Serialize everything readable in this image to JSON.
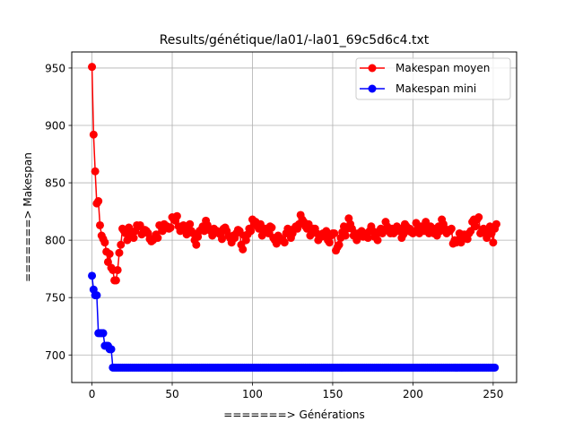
{
  "chart_data": {
    "type": "line",
    "title": "Results/génétique/la01/-la01_69c5d6c4.txt",
    "xlabel": "=======> Générations",
    "ylabel": "=======> Makespan",
    "xlim": [
      -12.6,
      264.6
    ],
    "ylim": [
      676,
      964
    ],
    "x_ticks": [
      0,
      50,
      100,
      150,
      200,
      250
    ],
    "x_tick_labels": [
      "0",
      "50",
      "100",
      "150",
      "200",
      "250"
    ],
    "y_ticks": [
      700,
      750,
      800,
      850,
      900,
      950
    ],
    "y_tick_labels": [
      "700",
      "750",
      "800",
      "850",
      "900",
      "950"
    ],
    "grid": true,
    "legend_position": "upper right",
    "series": [
      {
        "name": "Makespan moyen",
        "color": "#ff0000",
        "marker": "circle",
        "x_start": 0,
        "x_step": 1,
        "values": [
          951,
          892,
          860,
          832,
          834,
          813,
          804,
          801,
          798,
          790,
          781,
          788,
          776,
          774,
          765,
          765,
          774,
          789,
          796,
          810,
          808,
          806,
          800,
          811,
          806,
          804,
          802,
          808,
          813,
          812,
          813,
          805,
          807,
          809,
          808,
          806,
          801,
          799,
          800,
          802,
          805,
          802,
          813,
          812,
          808,
          814,
          811,
          812,
          810,
          811,
          820,
          818,
          817,
          821,
          812,
          808,
          809,
          813,
          810,
          805,
          811,
          814,
          808,
          806,
          800,
          796,
          803,
          808,
          809,
          812,
          808,
          817,
          813,
          809,
          808,
          804,
          810,
          807,
          808,
          806,
          805,
          801,
          810,
          811,
          808,
          804,
          802,
          798,
          804,
          802,
          806,
          809,
          808,
          796,
          792,
          804,
          800,
          805,
          810,
          808,
          818,
          814,
          816,
          812,
          810,
          814,
          804,
          808,
          810,
          810,
          806,
          812,
          811,
          802,
          800,
          797,
          804,
          802,
          800,
          800,
          798,
          806,
          810,
          808,
          802,
          806,
          810,
          812,
          810,
          814,
          822,
          818,
          816,
          812,
          810,
          814,
          804,
          808,
          810,
          810,
          806,
          800,
          804,
          803,
          806,
          805,
          808,
          800,
          798,
          804,
          806,
          806,
          791,
          794,
          796,
          802,
          807,
          812,
          804,
          810,
          819,
          814,
          810,
          804,
          806,
          800,
          806,
          805,
          808,
          803,
          804,
          806,
          802,
          808,
          812,
          808,
          803,
          804,
          800,
          808,
          810,
          806,
          808,
          816,
          812,
          808,
          806,
          810,
          806,
          808,
          812,
          808,
          810,
          802,
          805,
          814,
          812,
          808,
          810,
          807,
          806,
          808,
          815,
          810,
          806,
          812,
          810,
          808,
          816,
          810,
          806,
          812,
          810,
          806,
          810,
          804,
          812,
          808,
          818,
          814,
          810,
          806,
          808,
          808,
          810,
          797,
          800,
          798,
          800,
          806,
          798,
          802,
          805,
          803,
          801,
          806,
          808,
          816,
          818,
          812,
          818,
          820,
          806,
          808,
          810,
          806,
          802,
          808,
          812,
          806,
          798,
          810,
          814
        ]
      },
      {
        "name": "Makespan mini",
        "color": "#0000ff",
        "marker": "circle",
        "x_start": 0,
        "x_step": 1,
        "values": [
          769,
          757,
          752,
          752,
          719,
          719,
          719,
          719,
          708,
          708,
          708,
          705,
          705,
          689,
          689,
          689,
          689,
          689,
          689,
          689,
          689,
          689,
          689,
          689,
          689,
          689,
          689,
          689,
          689,
          689,
          689,
          689,
          689,
          689,
          689,
          689,
          689,
          689,
          689,
          689,
          689,
          689,
          689,
          689,
          689,
          689,
          689,
          689,
          689,
          689,
          689,
          689,
          689,
          689,
          689,
          689,
          689,
          689,
          689,
          689,
          689,
          689,
          689,
          689,
          689,
          689,
          689,
          689,
          689,
          689,
          689,
          689,
          689,
          689,
          689,
          689,
          689,
          689,
          689,
          689,
          689,
          689,
          689,
          689,
          689,
          689,
          689,
          689,
          689,
          689,
          689,
          689,
          689,
          689,
          689,
          689,
          689,
          689,
          689,
          689,
          689,
          689,
          689,
          689,
          689,
          689,
          689,
          689,
          689,
          689,
          689,
          689,
          689,
          689,
          689,
          689,
          689,
          689,
          689,
          689,
          689,
          689,
          689,
          689,
          689,
          689,
          689,
          689,
          689,
          689,
          689,
          689,
          689,
          689,
          689,
          689,
          689,
          689,
          689,
          689,
          689,
          689,
          689,
          689,
          689,
          689,
          689,
          689,
          689,
          689,
          689,
          689,
          689,
          689,
          689,
          689,
          689,
          689,
          689,
          689,
          689,
          689,
          689,
          689,
          689,
          689,
          689,
          689,
          689,
          689,
          689,
          689,
          689,
          689,
          689,
          689,
          689,
          689,
          689,
          689,
          689,
          689,
          689,
          689,
          689,
          689,
          689,
          689,
          689,
          689,
          689,
          689,
          689,
          689,
          689,
          689,
          689,
          689,
          689,
          689,
          689,
          689,
          689,
          689,
          689,
          689,
          689,
          689,
          689,
          689,
          689,
          689,
          689,
          689,
          689,
          689,
          689,
          689,
          689,
          689,
          689,
          689,
          689,
          689,
          689,
          689,
          689,
          689,
          689,
          689,
          689,
          689,
          689,
          689,
          689,
          689,
          689,
          689,
          689,
          689,
          689,
          689,
          689,
          689,
          689,
          689,
          689,
          689,
          689,
          689,
          689,
          689
        ]
      }
    ]
  }
}
